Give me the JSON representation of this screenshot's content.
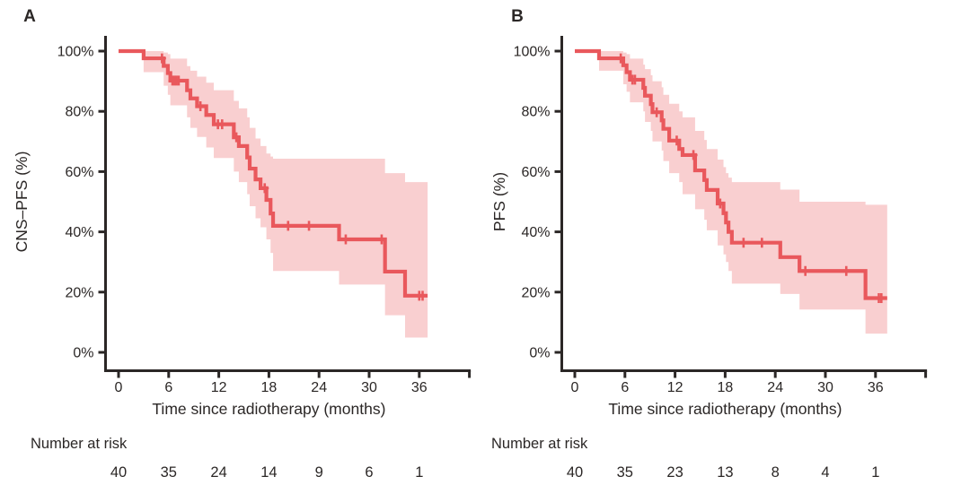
{
  "figure": {
    "background": "#ffffff",
    "colors": {
      "curve": "#e9585c",
      "band": "#f9cfd0",
      "axis": "#2b2726",
      "text": "#2b2726"
    }
  },
  "chart_data": [
    {
      "type": "line",
      "subtype": "kaplan-meier-step",
      "panel_label": "A",
      "ylabel": "CNS–PFS (%)",
      "xlabel": "Time since radiotherapy (months)",
      "x_ticks": [
        0,
        6,
        12,
        18,
        24,
        30,
        36
      ],
      "x_tick_labels": [
        "0",
        "6",
        "12",
        "18",
        "24",
        "30",
        "36"
      ],
      "x_axis_end_tick": 42,
      "y_ticks": [
        0,
        20,
        40,
        60,
        80,
        100
      ],
      "y_tick_labels": [
        "0%",
        "20%",
        "40%",
        "60%",
        "80%",
        "100%"
      ],
      "xlim": [
        -1.6,
        42
      ],
      "ylim": [
        -6,
        105
      ],
      "grid": false,
      "legend": "none",
      "t_end": 37.0,
      "steps": [
        [
          0,
          100
        ],
        [
          3.0,
          97.6
        ],
        [
          5.4,
          95.1
        ],
        [
          5.9,
          92.7
        ],
        [
          6.2,
          90.2
        ],
        [
          8.2,
          87.0
        ],
        [
          8.6,
          84.3
        ],
        [
          9.4,
          81.7
        ],
        [
          10.5,
          78.8
        ],
        [
          11.4,
          75.7
        ],
        [
          13.8,
          71.4
        ],
        [
          14.4,
          68.5
        ],
        [
          15.4,
          64.7
        ],
        [
          15.7,
          61.0
        ],
        [
          16.4,
          57.4
        ],
        [
          17.0,
          54.5
        ],
        [
          17.7,
          50.6
        ],
        [
          18.2,
          46.1
        ],
        [
          18.5,
          42.0
        ],
        [
          26.4,
          37.5
        ],
        [
          31.9,
          26.8
        ],
        [
          34.3,
          18.8
        ]
      ],
      "censors": [
        [
          5.2,
          97.6
        ],
        [
          6.45,
          90.2
        ],
        [
          6.7,
          90.2
        ],
        [
          6.95,
          90.2
        ],
        [
          7.2,
          90.2
        ],
        [
          9.8,
          81.7
        ],
        [
          11.9,
          75.7
        ],
        [
          12.4,
          75.7
        ],
        [
          14.1,
          71.4
        ],
        [
          17.5,
          54.5
        ],
        [
          20.3,
          42.0
        ],
        [
          22.8,
          42.0
        ],
        [
          27.2,
          37.5
        ],
        [
          31.5,
          37.5
        ],
        [
          36.0,
          18.8
        ],
        [
          36.4,
          18.8
        ]
      ],
      "band": [
        [
          3.0,
          93.0,
          100
        ],
        [
          5.4,
          88.5,
          99.5
        ],
        [
          5.9,
          85.5,
          99.0
        ],
        [
          6.2,
          82.0,
          97.5
        ],
        [
          8.2,
          78.0,
          95.0
        ],
        [
          8.6,
          74.5,
          93.5
        ],
        [
          9.4,
          71.5,
          91.5
        ],
        [
          10.5,
          68.0,
          89.5
        ],
        [
          11.4,
          64.5,
          87.0
        ],
        [
          13.8,
          60.0,
          83.5
        ],
        [
          14.4,
          56.5,
          81.0
        ],
        [
          15.4,
          52.5,
          78.0
        ],
        [
          15.7,
          48.5,
          74.5
        ],
        [
          16.4,
          44.5,
          71.0
        ],
        [
          17.0,
          41.5,
          68.5
        ],
        [
          17.7,
          37.5,
          66.0
        ],
        [
          18.2,
          33.0,
          65.0
        ],
        [
          18.5,
          27.0,
          64.3
        ],
        [
          26.4,
          22.5,
          64.3
        ],
        [
          31.9,
          12.3,
          59.5
        ],
        [
          34.3,
          4.9,
          56.5
        ]
      ],
      "risk": {
        "label": "Number at risk",
        "times": [
          0,
          6,
          12,
          18,
          24,
          30,
          36
        ],
        "counts": [
          "40",
          "35",
          "24",
          "14",
          "9",
          "6",
          "1"
        ]
      }
    },
    {
      "type": "line",
      "subtype": "kaplan-meier-step",
      "panel_label": "B",
      "ylabel": "PFS (%)",
      "xlabel": "Time since radiotherapy (months)",
      "x_ticks": [
        0,
        6,
        12,
        18,
        24,
        30,
        36
      ],
      "x_tick_labels": [
        "0",
        "6",
        "12",
        "18",
        "24",
        "30",
        "36"
      ],
      "x_axis_end_tick": 42,
      "y_ticks": [
        0,
        20,
        40,
        60,
        80,
        100
      ],
      "y_tick_labels": [
        "0%",
        "20%",
        "40%",
        "60%",
        "80%",
        "100%"
      ],
      "xlim": [
        -1.6,
        42
      ],
      "ylim": [
        -6,
        105
      ],
      "grid": false,
      "legend": "none",
      "t_end": 37.4,
      "steps": [
        [
          0,
          100
        ],
        [
          2.9,
          97.6
        ],
        [
          5.8,
          95.3
        ],
        [
          6.2,
          93.0
        ],
        [
          6.6,
          90.5
        ],
        [
          8.2,
          87.8
        ],
        [
          8.4,
          85.2
        ],
        [
          9.1,
          82.4
        ],
        [
          9.3,
          79.7
        ],
        [
          10.4,
          77.0
        ],
        [
          10.6,
          74.2
        ],
        [
          11.3,
          70.3
        ],
        [
          12.5,
          67.5
        ],
        [
          12.9,
          65.5
        ],
        [
          14.4,
          60.4
        ],
        [
          15.5,
          57.2
        ],
        [
          15.8,
          53.9
        ],
        [
          17.1,
          49.4
        ],
        [
          17.8,
          46.2
        ],
        [
          18.1,
          43.1
        ],
        [
          18.4,
          40.0
        ],
        [
          18.8,
          36.4
        ],
        [
          24.6,
          31.6
        ],
        [
          26.9,
          27.0
        ],
        [
          34.8,
          18.0
        ]
      ],
      "censors": [
        [
          5.5,
          97.6
        ],
        [
          6.9,
          90.5
        ],
        [
          7.2,
          90.5
        ],
        [
          9.8,
          79.7
        ],
        [
          12.2,
          70.3
        ],
        [
          14.2,
          65.5
        ],
        [
          17.4,
          49.4
        ],
        [
          20.2,
          36.4
        ],
        [
          22.4,
          36.4
        ],
        [
          27.6,
          27.0
        ],
        [
          32.5,
          27.0
        ],
        [
          36.4,
          18.0
        ],
        [
          36.7,
          18.0
        ]
      ],
      "band": [
        [
          2.9,
          93.5,
          100
        ],
        [
          5.8,
          89.0,
          99.5
        ],
        [
          6.2,
          86.5,
          99.0
        ],
        [
          6.6,
          83.0,
          97.5
        ],
        [
          8.2,
          80.0,
          95.5
        ],
        [
          8.4,
          76.5,
          94.0
        ],
        [
          9.1,
          73.5,
          92.0
        ],
        [
          9.3,
          70.0,
          90.0
        ],
        [
          10.4,
          67.0,
          88.0
        ],
        [
          10.6,
          63.5,
          85.5
        ],
        [
          11.3,
          59.5,
          82.5
        ],
        [
          12.5,
          56.5,
          80.0
        ],
        [
          12.9,
          52.5,
          78.0
        ],
        [
          14.4,
          47.5,
          73.5
        ],
        [
          15.5,
          44.0,
          70.5
        ],
        [
          15.8,
          40.5,
          67.5
        ],
        [
          17.1,
          35.5,
          64.0
        ],
        [
          17.8,
          32.5,
          61.5
        ],
        [
          18.1,
          30.0,
          59.5
        ],
        [
          18.4,
          27.0,
          58.0
        ],
        [
          18.8,
          22.8,
          56.5
        ],
        [
          24.6,
          19.4,
          54.0
        ],
        [
          26.9,
          14.2,
          50.0
        ],
        [
          34.8,
          6.2,
          49.0
        ]
      ],
      "risk": {
        "label": "Number at risk",
        "times": [
          0,
          6,
          12,
          18,
          24,
          30,
          36
        ],
        "counts": [
          "40",
          "35",
          "23",
          "13",
          "8",
          "4",
          "1"
        ]
      }
    }
  ]
}
